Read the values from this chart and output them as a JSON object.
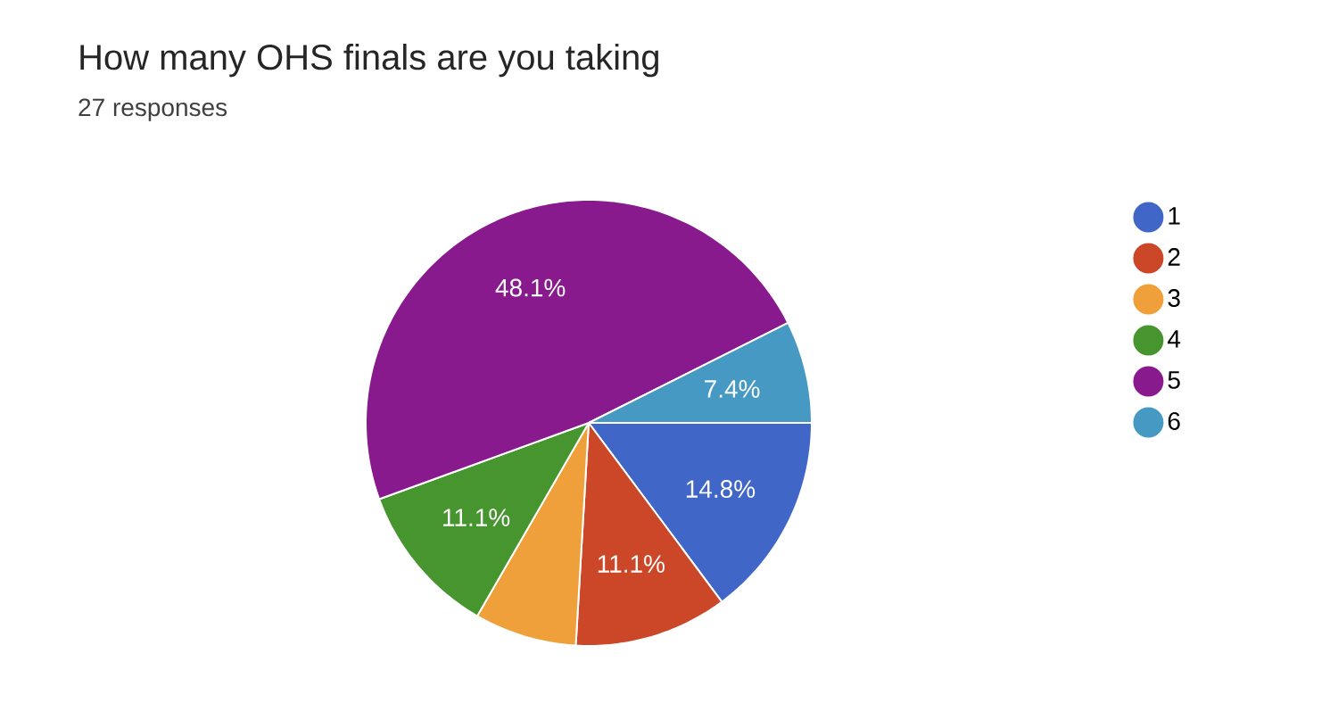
{
  "chart_data": {
    "type": "pie",
    "title": "How many OHS finals are you taking",
    "subtitle": "27 responses",
    "categories": [
      "1",
      "2",
      "3",
      "4",
      "5",
      "6"
    ],
    "values": [
      14.8,
      11.1,
      7.4,
      11.1,
      48.1,
      7.4
    ],
    "value_labels": [
      "14.8%",
      "11.1%",
      null,
      "11.1%",
      "48.1%",
      "7.4%"
    ],
    "colors": [
      "#4066c8",
      "#cc4628",
      "#f0a03a",
      "#46952f",
      "#891a8e",
      "#4699c3"
    ],
    "legend": "right"
  }
}
